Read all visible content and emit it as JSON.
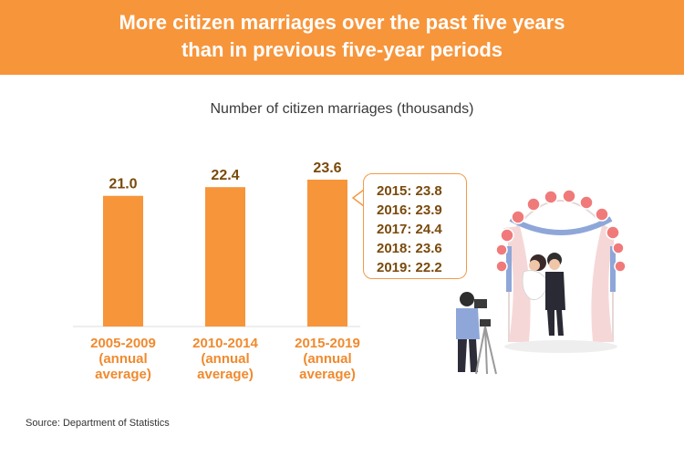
{
  "header": {
    "title_line1": "More citizen marriages over the past five years",
    "title_line2": "than in previous five-year periods"
  },
  "chart_data": {
    "type": "bar",
    "title": "Number of citizen marriages (thousands)",
    "categories": [
      [
        "2005-2009",
        "(annual",
        "average)"
      ],
      [
        "2010-2014",
        "(annual",
        "average)"
      ],
      [
        "2015-2019",
        "(annual",
        "average)"
      ]
    ],
    "values": [
      21.0,
      22.4,
      23.6
    ],
    "value_labels": [
      "21.0",
      "22.4",
      "23.6"
    ],
    "ylim": [
      0,
      23.6
    ],
    "grid": false,
    "legend": "none"
  },
  "callout": {
    "items": [
      "2015: 23.8",
      "2016: 23.9",
      "2017: 24.4",
      "2018: 23.6",
      "2019: 22.2"
    ]
  },
  "footer": {
    "source": "Source: Department of Statistics"
  },
  "colors": {
    "banner": "#f7953b",
    "bar": "#f7953b",
    "value_label": "#7a4a0c",
    "category_label": "#f08a2e"
  },
  "illustration": {
    "icon": "wedding-photographer-illustration"
  }
}
